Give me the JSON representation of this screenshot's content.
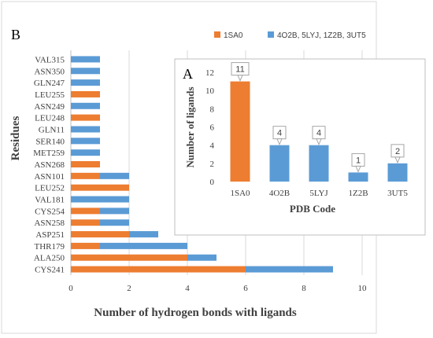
{
  "colors": {
    "series1": "#ED7D31",
    "series2": "#5B9BD5"
  },
  "legend": [
    {
      "name": "1SA0",
      "color": "#ED7D31"
    },
    {
      "name": "4O2B, 5LYJ, 1Z2B, 3UT5",
      "color": "#5B9BD5"
    }
  ],
  "chart_data": [
    {
      "panel": "B",
      "type": "bar",
      "orientation": "horizontal",
      "stacked": true,
      "title": "",
      "xlabel": "Number of hydrogen bonds with ligands",
      "ylabel": "Residues",
      "xlim": [
        0,
        10
      ],
      "xticks": [
        0,
        2,
        4,
        6,
        8,
        10
      ],
      "grid": true,
      "legend_position": "top-right",
      "categories": [
        "CYS241",
        "ALA250",
        "THR179",
        "ASP251",
        "ASN258",
        "CYS254",
        "VAL181",
        "LEU252",
        "ASN101",
        "ASN268",
        "MET259",
        "SER140",
        "GLN11",
        "LEU248",
        "ASN249",
        "LEU255",
        "GLN247",
        "ASN350",
        "VAL315"
      ],
      "series": [
        {
          "name": "1SA0",
          "color": "#ED7D31",
          "values": [
            6,
            4,
            1,
            2,
            1,
            1,
            0,
            2,
            1,
            1,
            0,
            0,
            0,
            1,
            0,
            1,
            0,
            0,
            0
          ]
        },
        {
          "name": "4O2B, 5LYJ, 1Z2B, 3UT5",
          "color": "#5B9BD5",
          "values": [
            3,
            1,
            3,
            1,
            1,
            1,
            2,
            0,
            1,
            0,
            1,
            1,
            1,
            0,
            1,
            0,
            1,
            1,
            1
          ]
        }
      ]
    },
    {
      "panel": "A",
      "type": "bar",
      "title": "",
      "xlabel": "PDB Code",
      "ylabel": "Number of ligands",
      "ylim": [
        0,
        12
      ],
      "yticks": [
        0,
        2,
        4,
        6,
        8,
        10,
        12
      ],
      "grid": false,
      "categories": [
        "1SA0",
        "4O2B",
        "5LYJ",
        "1Z2B",
        "3UT5"
      ],
      "values": [
        11,
        4,
        4,
        1,
        2
      ],
      "data_labels": [
        "11",
        "4",
        "4",
        "1",
        "2"
      ],
      "colors": [
        "#ED7D31",
        "#5B9BD5",
        "#5B9BD5",
        "#5B9BD5",
        "#5B9BD5"
      ]
    }
  ]
}
